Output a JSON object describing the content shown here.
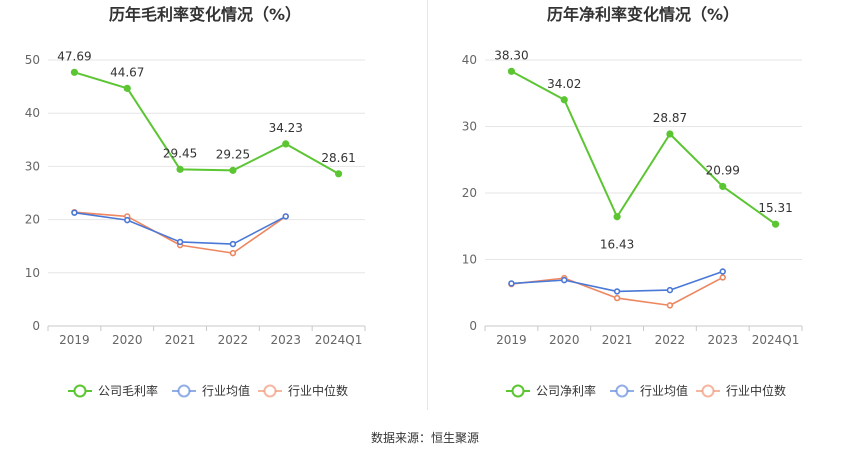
{
  "source_text": "数据来源：恒生聚源",
  "chart_data": [
    {
      "type": "line",
      "title": "历年毛利率变化情况（%）",
      "categories": [
        "2019",
        "2020",
        "2021",
        "2022",
        "2023",
        "2024Q1"
      ],
      "ylim": [
        0,
        50
      ],
      "yticks": [
        0,
        10,
        20,
        30,
        40,
        50
      ],
      "grid": true,
      "legend_position": "bottom",
      "series": [
        {
          "name": "公司毛利率",
          "color": "#5bc532",
          "values": [
            47.69,
            44.67,
            29.45,
            29.25,
            34.23,
            28.61
          ],
          "labels": [
            "47.69",
            "44.67",
            "29.45",
            "29.25",
            "34.23",
            "28.61"
          ]
        },
        {
          "name": "行业均值",
          "color": "#4a78d6",
          "values": [
            21.3,
            19.9,
            15.8,
            15.4,
            20.6,
            null
          ]
        },
        {
          "name": "行业中位数",
          "color": "#ee8760",
          "values": [
            21.4,
            20.6,
            15.2,
            13.7,
            20.6,
            null
          ]
        }
      ]
    },
    {
      "type": "line",
      "title": "历年净利率变化情况（%）",
      "categories": [
        "2019",
        "2020",
        "2021",
        "2022",
        "2023",
        "2024Q1"
      ],
      "ylim": [
        0,
        40
      ],
      "yticks": [
        0,
        10,
        20,
        30,
        40
      ],
      "grid": true,
      "legend_position": "bottom",
      "series": [
        {
          "name": "公司净利率",
          "color": "#5bc532",
          "values": [
            38.3,
            34.02,
            16.43,
            28.87,
            20.99,
            15.31
          ],
          "labels": [
            "38.30",
            "34.02",
            "16.43",
            "28.87",
            "20.99",
            "15.31"
          ]
        },
        {
          "name": "行业均值",
          "color": "#4a78d6",
          "values": [
            6.4,
            6.9,
            5.2,
            5.4,
            8.2,
            null
          ]
        },
        {
          "name": "行业中位数",
          "color": "#ee8760",
          "values": [
            6.3,
            7.2,
            4.2,
            3.1,
            7.3,
            null
          ]
        }
      ]
    }
  ]
}
